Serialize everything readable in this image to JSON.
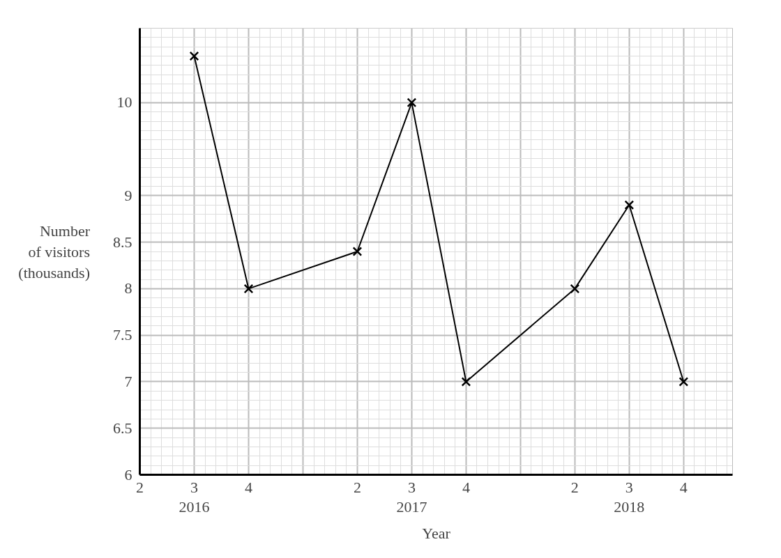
{
  "chart_data": {
    "type": "line",
    "xlabel": "Year",
    "ylabel": "Number\nof visitors\n(thousands)",
    "categories": [
      "2",
      "3",
      "4",
      null,
      "2",
      "3",
      "4",
      null,
      "2",
      "3",
      "4"
    ],
    "series": [
      {
        "color": "#000000",
        "values": [
          null,
          10.5,
          8.0,
          null,
          8.4,
          10.0,
          7.0,
          null,
          8.0,
          8.9,
          7.0
        ]
      }
    ],
    "ylim": [
      6,
      10.8
    ],
    "yticks": [
      6,
      6.5,
      7,
      7.5,
      8,
      8.5,
      9,
      10
    ],
    "annotations": [
      "2016",
      "2017",
      "2018"
    ],
    "grid": true,
    "marker": "cross",
    "line_style": "solid"
  }
}
